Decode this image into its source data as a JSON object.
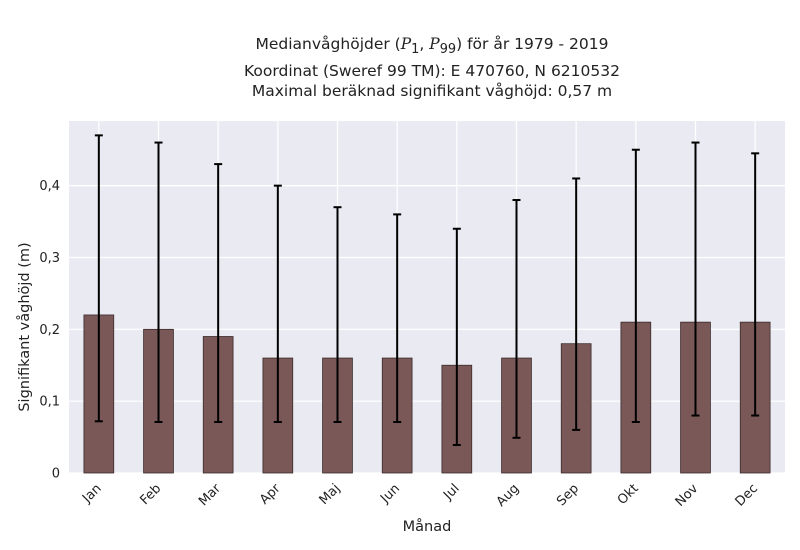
{
  "chart_data": {
    "type": "bar",
    "title": {
      "prefix": "Medianvåghöjder (",
      "p_low": "P",
      "p_low_sub": "1",
      "comma": ", ",
      "p_high": "P",
      "p_high_sub": "99",
      "suffix": ") för år 1979 - 2019",
      "line2": "Koordinat (Sweref 99 TM): E 470760, N 6210532",
      "line3": "Maximal beräknad signifikant våghöjd: 0,57 m"
    },
    "xlabel": "Månad",
    "ylabel": "Signifikant våghöjd (m)",
    "ylim": [
      0,
      0.49
    ],
    "yticks": [
      0,
      0.1,
      0.2,
      0.3,
      0.4
    ],
    "ytick_labels": [
      "0",
      "0,1",
      "0,2",
      "0,3",
      "0,4"
    ],
    "categories": [
      "Jan",
      "Feb",
      "Mar",
      "Apr",
      "Maj",
      "Jun",
      "Jul",
      "Aug",
      "Sep",
      "Okt",
      "Nov",
      "Dec"
    ],
    "values": [
      0.22,
      0.2,
      0.19,
      0.16,
      0.16,
      0.16,
      0.15,
      0.16,
      0.18,
      0.21,
      0.21,
      0.21
    ],
    "error_low": [
      0.072,
      0.071,
      0.071,
      0.071,
      0.071,
      0.071,
      0.039,
      0.049,
      0.06,
      0.071,
      0.08,
      0.08
    ],
    "error_high": [
      0.47,
      0.46,
      0.43,
      0.4,
      0.37,
      0.36,
      0.34,
      0.38,
      0.41,
      0.45,
      0.46,
      0.445
    ],
    "grid": true,
    "bar_color": "#7a5858",
    "bar_edge_color": "#3a2a2a",
    "background_color": "#eaeaf2",
    "grid_color": "#ffffff",
    "error_color": "#000000"
  }
}
